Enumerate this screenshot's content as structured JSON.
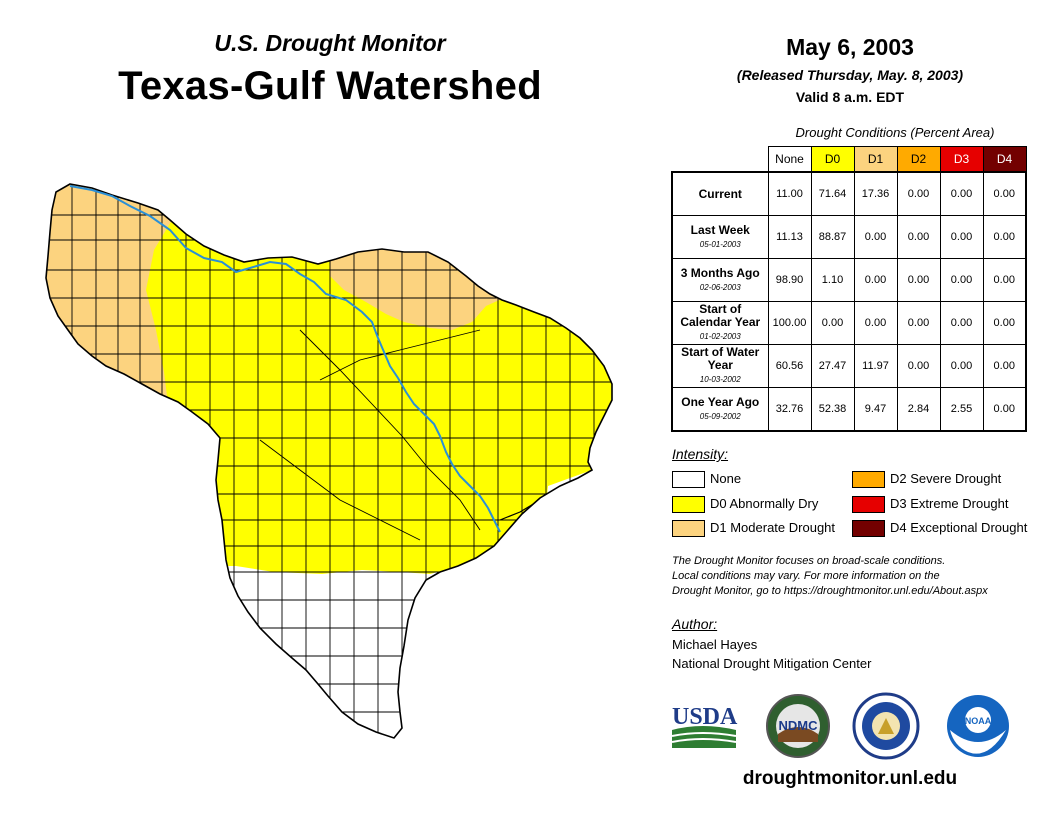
{
  "header": {
    "subtitle": "U.S. Drought Monitor",
    "title": "Texas-Gulf Watershed",
    "date": "May 6, 2003",
    "released": "(Released Thursday, May. 8, 2003)",
    "valid": "Valid 8 a.m. EDT"
  },
  "table": {
    "caption": "Drought Conditions (Percent Area)",
    "columns": [
      {
        "label": "None",
        "color": "#ffffff",
        "text_color": "#000000"
      },
      {
        "label": "D0",
        "color": "#ffff00",
        "text_color": "#000000"
      },
      {
        "label": "D1",
        "color": "#fcd37f",
        "text_color": "#000000"
      },
      {
        "label": "D2",
        "color": "#ffaa00",
        "text_color": "#000000"
      },
      {
        "label": "D3",
        "color": "#e60000",
        "text_color": "#ffffff"
      },
      {
        "label": "D4",
        "color": "#730000",
        "text_color": "#ffffff"
      }
    ],
    "rows": [
      {
        "label": "Current",
        "date": "",
        "values": [
          "11.00",
          "71.64",
          "17.36",
          "0.00",
          "0.00",
          "0.00"
        ]
      },
      {
        "label": "Last Week",
        "date": "05-01-2003",
        "values": [
          "11.13",
          "88.87",
          "0.00",
          "0.00",
          "0.00",
          "0.00"
        ]
      },
      {
        "label": "3 Months Ago",
        "date": "02-06-2003",
        "values": [
          "98.90",
          "1.10",
          "0.00",
          "0.00",
          "0.00",
          "0.00"
        ]
      },
      {
        "label": "Start of Calendar Year",
        "date": "01-02-2003",
        "values": [
          "100.00",
          "0.00",
          "0.00",
          "0.00",
          "0.00",
          "0.00"
        ]
      },
      {
        "label": "Start of Water Year",
        "date": "10-03-2002",
        "values": [
          "60.56",
          "27.47",
          "11.97",
          "0.00",
          "0.00",
          "0.00"
        ]
      },
      {
        "label": "One Year Ago",
        "date": "05-09-2002",
        "values": [
          "32.76",
          "52.38",
          "9.47",
          "2.84",
          "2.55",
          "0.00"
        ]
      }
    ]
  },
  "legend": {
    "title": "Intensity:",
    "items": [
      {
        "label": "None",
        "color": "#ffffff"
      },
      {
        "label": "D0 Abnormally Dry",
        "color": "#ffff00"
      },
      {
        "label": "D1 Moderate Drought",
        "color": "#fcd37f"
      },
      {
        "label": "D2 Severe Drought",
        "color": "#ffaa00"
      },
      {
        "label": "D3 Extreme Drought",
        "color": "#e60000"
      },
      {
        "label": "D4 Exceptional Drought",
        "color": "#730000"
      }
    ]
  },
  "note": {
    "line1": "The Drought Monitor focuses on broad-scale conditions.",
    "line2": "Local conditions may vary. For more information on the",
    "line3": "Drought Monitor, go to https://droughtmonitor.unl.edu/About.aspx"
  },
  "author": {
    "title": "Author:",
    "name": "Michael Hayes",
    "org": "National Drought Mitigation Center"
  },
  "logos": {
    "usda": "USDA",
    "ndmc": "NDMC",
    "noaa": "NOAA"
  },
  "footer": {
    "url": "droughtmonitor.unl.edu"
  },
  "map": {
    "categories_shown": [
      "None",
      "D0",
      "D1"
    ],
    "river_color": "#2a8fd6"
  }
}
